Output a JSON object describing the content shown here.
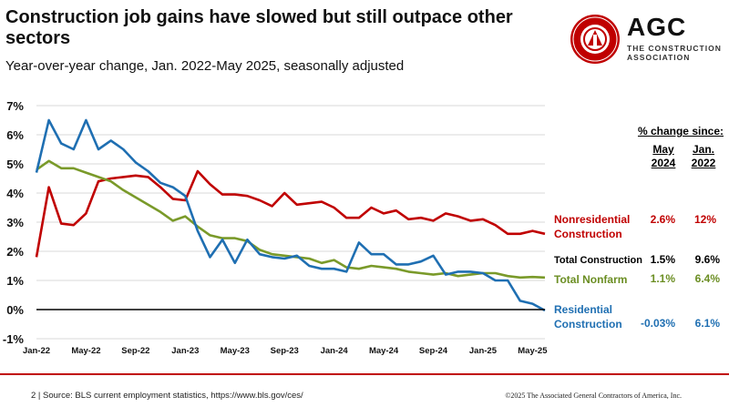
{
  "header": {
    "title": "Construction job gains have slowed but still outpace other sectors",
    "subtitle": "Year-over-year change, Jan. 2022-May 2025, seasonally adjusted"
  },
  "logo": {
    "word": "AGC",
    "tagline_1": "THE CONSTRUCTION",
    "tagline_2": "ASSOCIATION",
    "seal_text": "ASSOCIATED GENERAL CONTRACTORS OF AMERICA"
  },
  "table": {
    "heading": "% change since:",
    "col1": [
      "May",
      "2024"
    ],
    "col2": [
      "Jan.",
      "2022"
    ],
    "rows": [
      {
        "label1": "Nonresidential",
        "label2": "Construction",
        "v1": "2.6%",
        "v2": "12%",
        "color": "#c00000"
      },
      {
        "label1": "Total Construction",
        "label2": "",
        "v1": "1.5%",
        "v2": "9.6%",
        "color": "#000000"
      },
      {
        "label1": "Total Nonfarm",
        "label2": "",
        "v1": "1.1%",
        "v2": "6.4%",
        "color": "#6b8e23"
      },
      {
        "label1": "Residential",
        "label2": "Construction",
        "v1": "-0.03%",
        "v2": "6.1%",
        "color": "#1f6fb2"
      }
    ]
  },
  "footer": {
    "left": "2 | Source: BLS current employment statistics, https://www.bls.gov/ces/",
    "right": "©2025 The Associated General Contractors of America, Inc."
  },
  "chart_data": {
    "type": "line",
    "title": "Construction job gains have slowed but still outpace other sectors",
    "xlabel": "",
    "ylabel": "",
    "ylim": [
      -1,
      7
    ],
    "yticks": [
      -1,
      0,
      1,
      2,
      3,
      4,
      5,
      6,
      7
    ],
    "ytick_labels": [
      "-1%",
      "0%",
      "1%",
      "2%",
      "3%",
      "4%",
      "5%",
      "6%",
      "7%"
    ],
    "x_tick_indices": [
      0,
      4,
      8,
      12,
      16,
      20,
      24,
      28,
      32,
      36,
      40
    ],
    "x_tick_labels": [
      "Jan-22",
      "May-22",
      "Sep-22",
      "Jan-23",
      "May-23",
      "Sep-23",
      "Jan-24",
      "May-24",
      "Sep-24",
      "Jan-25",
      "May-25"
    ],
    "grid": "horizontal",
    "series": [
      {
        "name": "Nonresidential Construction",
        "color": "#c00000",
        "values": [
          1.8,
          4.2,
          2.95,
          2.9,
          3.3,
          4.4,
          4.5,
          4.55,
          4.6,
          4.55,
          4.2,
          3.8,
          3.75,
          4.75,
          4.3,
          3.95,
          3.95,
          3.9,
          3.75,
          3.55,
          4.0,
          3.6,
          3.65,
          3.7,
          3.5,
          3.15,
          3.15,
          3.5,
          3.3,
          3.4,
          3.1,
          3.15,
          3.05,
          3.3,
          3.2,
          3.05,
          3.1,
          2.9,
          2.6,
          2.6,
          2.7,
          2.6
        ]
      },
      {
        "name": "Total Nonfarm",
        "color": "#7a9a2a",
        "values": [
          4.8,
          5.1,
          4.85,
          4.85,
          4.7,
          4.55,
          4.4,
          4.1,
          3.85,
          3.6,
          3.35,
          3.05,
          3.2,
          2.85,
          2.55,
          2.45,
          2.45,
          2.35,
          2.05,
          1.9,
          1.85,
          1.8,
          1.75,
          1.6,
          1.7,
          1.45,
          1.4,
          1.5,
          1.45,
          1.4,
          1.3,
          1.25,
          1.2,
          1.25,
          1.15,
          1.2,
          1.25,
          1.25,
          1.15,
          1.1,
          1.12,
          1.1
        ]
      },
      {
        "name": "Residential Construction",
        "color": "#1f6fb2",
        "values": [
          4.7,
          6.5,
          5.7,
          5.5,
          6.5,
          5.5,
          5.8,
          5.5,
          5.05,
          4.75,
          4.35,
          4.2,
          3.9,
          2.7,
          1.8,
          2.4,
          1.6,
          2.4,
          1.9,
          1.8,
          1.75,
          1.85,
          1.5,
          1.4,
          1.4,
          1.3,
          2.3,
          1.9,
          1.9,
          1.55,
          1.55,
          1.65,
          1.85,
          1.2,
          1.3,
          1.3,
          1.25,
          1.0,
          1.0,
          0.3,
          0.2,
          -0.03
        ]
      }
    ],
    "zero_line": true
  }
}
